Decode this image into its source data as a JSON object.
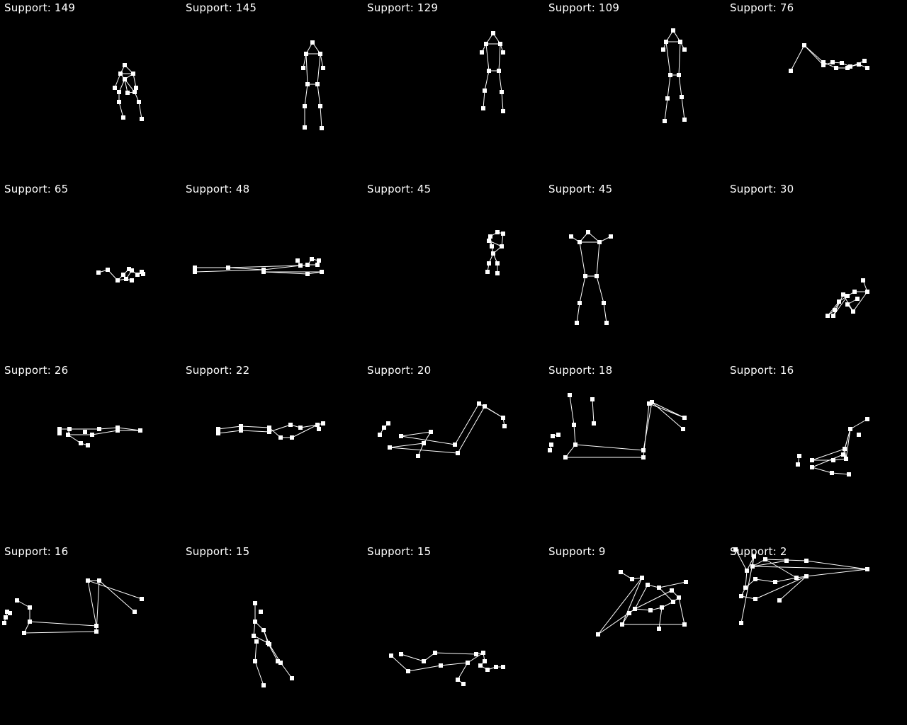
{
  "label_prefix": "Support:",
  "colors": {
    "background": "#000000",
    "foreground": "#ffffff"
  },
  "clusters": [
    {
      "support": 149
    },
    {
      "support": 145
    },
    {
      "support": 129
    },
    {
      "support": 109
    },
    {
      "support": 76
    },
    {
      "support": 65
    },
    {
      "support": 48
    },
    {
      "support": 45
    },
    {
      "support": 45
    },
    {
      "support": 30
    },
    {
      "support": 26
    },
    {
      "support": 22
    },
    {
      "support": 20
    },
    {
      "support": 18
    },
    {
      "support": 16
    },
    {
      "support": 16
    },
    {
      "support": 15
    },
    {
      "support": 15
    },
    {
      "support": 9
    },
    {
      "support": 2
    }
  ]
}
